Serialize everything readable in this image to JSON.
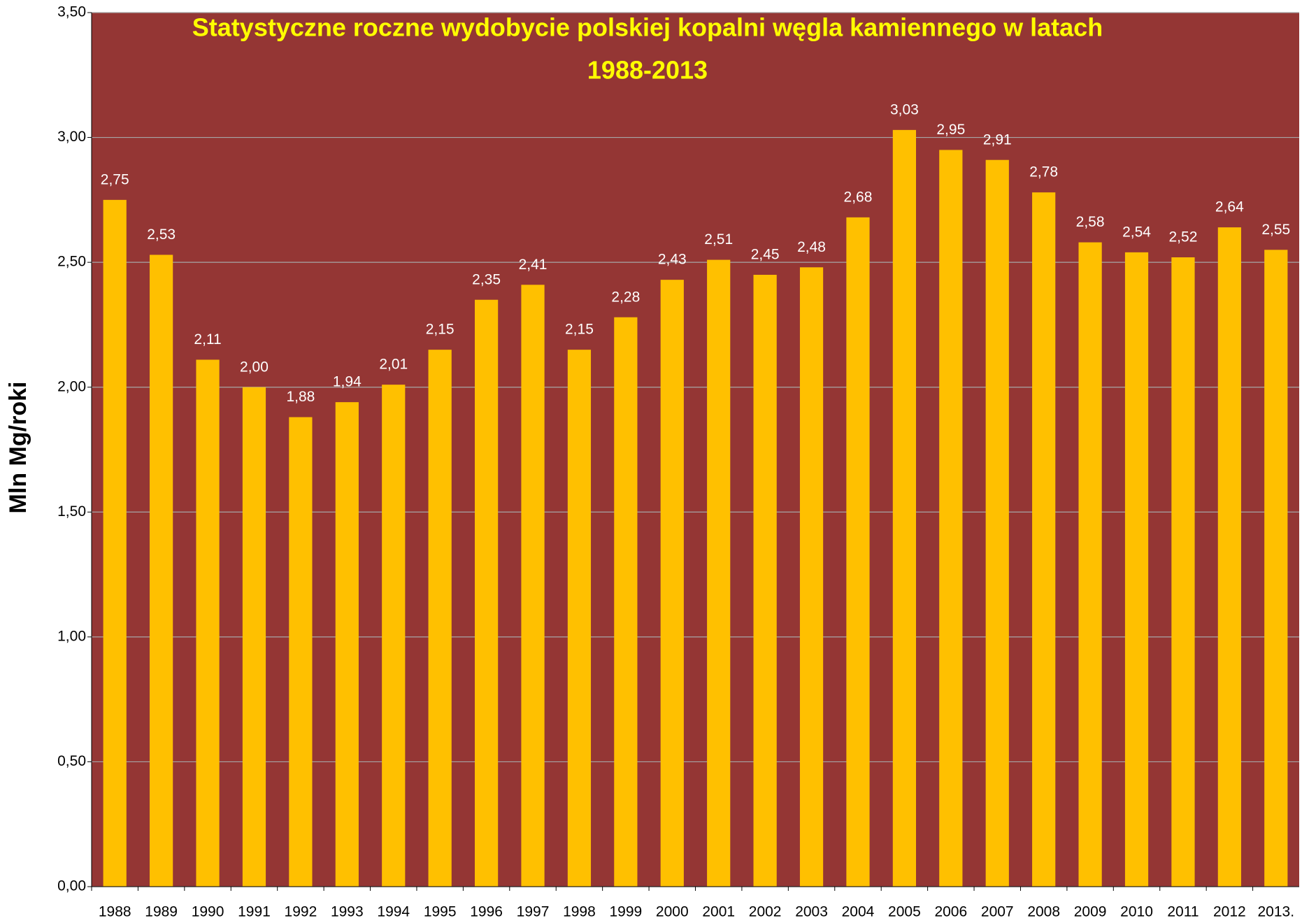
{
  "chart_data": {
    "type": "bar",
    "title": [
      "Statystyczne roczne wydobycie polskiej kopalni węgla kamiennego w latach",
      "1988-2013"
    ],
    "y_label": "Mln Mg/roki",
    "categories": [
      "1988",
      "1989",
      "1990",
      "1991",
      "1992",
      "1993",
      "1994",
      "1995",
      "1996",
      "1997",
      "1998",
      "1999",
      "2000",
      "2001",
      "2002",
      "2003",
      "2004",
      "2005",
      "2006",
      "2007",
      "2008",
      "2009",
      "2010",
      "2011",
      "2012",
      "2013."
    ],
    "values": [
      2.75,
      2.53,
      2.11,
      2.0,
      1.88,
      1.94,
      2.01,
      2.15,
      2.35,
      2.41,
      2.15,
      2.28,
      2.43,
      2.51,
      2.45,
      2.48,
      2.68,
      3.03,
      2.95,
      2.91,
      2.78,
      2.58,
      2.54,
      2.52,
      2.64,
      2.55
    ],
    "value_labels": [
      "2,75",
      "2,53",
      "2,11",
      "2,00",
      "1,88",
      "1,94",
      "2,01",
      "2,15",
      "2,35",
      "2,41",
      "2,15",
      "2,28",
      "2,43",
      "2,51",
      "2,45",
      "2,48",
      "2,68",
      "3,03",
      "2,95",
      "2,91",
      "2,78",
      "2,58",
      "2,54",
      "2,52",
      "2,64",
      "2,55"
    ],
    "color": "#ffc000",
    "background": "#943634",
    "ylim": [
      0,
      3.5
    ],
    "yticks": [
      {
        "value": 0,
        "label": "0,00"
      },
      {
        "value": 0.5,
        "label": "0,50"
      },
      {
        "value": 1,
        "label": "1,00"
      },
      {
        "value": 1.5,
        "label": "1,50"
      },
      {
        "value": 2,
        "label": "2,00"
      },
      {
        "value": 2.5,
        "label": "2,50"
      },
      {
        "value": 3,
        "label": "3,00"
      },
      {
        "value": 3.5,
        "label": "3,50"
      }
    ],
    "grid": true
  }
}
